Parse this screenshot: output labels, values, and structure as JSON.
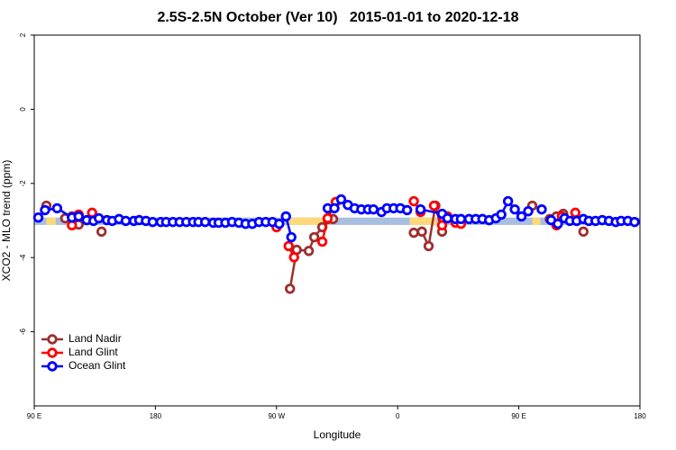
{
  "chart_data": {
    "type": "line",
    "title": "2.5S-2.5N October (Ver 10)   2015-01-01 to 2020-12-18",
    "x_label": "Longitude",
    "y_label": "XCO2 - MLO trend (ppm)",
    "xlim": [
      90,
      540
    ],
    "ylim": [
      -8,
      2
    ],
    "xticks": [
      {
        "value": 90,
        "label": "90 E"
      },
      180,
      {
        "value": 270,
        "label": "90 W"
      },
      {
        "value": 360,
        "label": "0"
      },
      {
        "value": 450,
        "label": "90 E"
      },
      {
        "value": 540,
        "label": "180"
      }
    ],
    "yticks": [
      2,
      0,
      -2,
      -4,
      -6
    ],
    "legend": "bottom-left",
    "band": {
      "ylim": [
        -3.12,
        -2.92
      ],
      "color": "#a8bfdf",
      "highlights": {
        "color": "#fcd97a",
        "xranges": [
          [
            99,
            106
          ],
          [
            279,
            309
          ],
          [
            369,
            389
          ],
          [
            460,
            466
          ]
        ]
      }
    },
    "series": [
      {
        "name": "Land Nadir",
        "color": "#9e2f2f",
        "x": [
          99,
          null,
          113,
          118,
          123,
          null,
          140,
          null,
          280,
          285,
          294,
          298,
          304,
          308,
          312,
          null,
          372,
          378,
          383,
          388,
          393,
          null,
          460,
          null,
          473,
          478,
          483,
          null,
          498
        ],
        "values": [
          -2.6,
          null,
          -2.94,
          -2.89,
          -3.11,
          null,
          -3.3,
          null,
          -4.84,
          -3.79,
          -3.82,
          -3.45,
          -3.18,
          -2.96,
          -2.96,
          null,
          -3.33,
          -3.3,
          -3.69,
          -2.6,
          -3.3,
          null,
          -2.6,
          null,
          -2.96,
          -2.89,
          -2.82,
          null,
          -3.3
        ]
      },
      {
        "name": "Land Glint",
        "color": "#ff0000",
        "x": [
          118,
          123,
          null,
          133,
          null,
          270,
          null,
          279,
          283,
          null,
          304,
          308,
          314,
          null,
          372,
          377,
          null,
          387,
          393,
          397,
          403,
          407,
          null,
          478,
          482,
          null,
          492
        ],
        "values": [
          -3.13,
          -2.84,
          null,
          -2.79,
          null,
          -3.18,
          null,
          -3.69,
          -3.99,
          null,
          -3.57,
          -2.94,
          -2.5,
          null,
          -2.48,
          -2.77,
          null,
          -2.6,
          -3.13,
          -2.89,
          -3.06,
          -3.09,
          null,
          -3.13,
          -2.89,
          null,
          -2.79
        ]
      },
      {
        "name": "Ocean Glint",
        "color": "#0000ff",
        "x": [
          93,
          98,
          107,
          118,
          123,
          129,
          134,
          138,
          144,
          148,
          153,
          158,
          164,
          168,
          173,
          178,
          184,
          188,
          193,
          198,
          203,
          208,
          212,
          217,
          223,
          227,
          232,
          237,
          242,
          247,
          252,
          257,
          262,
          267,
          272,
          277,
          281,
          null,
          308,
          313,
          318,
          323,
          328,
          333,
          338,
          342,
          348,
          352,
          357,
          362,
          367,
          null,
          377,
          393,
          397,
          403,
          407,
          413,
          418,
          423,
          428,
          433,
          437,
          442,
          447,
          452,
          457,
          null,
          467,
          null,
          474,
          479,
          484,
          488,
          493,
          498,
          502,
          507,
          512,
          517,
          522,
          526,
          531,
          536
        ],
        "values": [
          -2.92,
          -2.72,
          -2.67,
          -2.92,
          -2.89,
          -2.99,
          -3.01,
          -2.94,
          -2.99,
          -3.01,
          -2.96,
          -3.01,
          -3.01,
          -2.99,
          -3.01,
          -3.04,
          -3.04,
          -3.04,
          -3.04,
          -3.04,
          -3.04,
          -3.04,
          -3.04,
          -3.04,
          -3.06,
          -3.06,
          -3.06,
          -3.04,
          -3.06,
          -3.09,
          -3.09,
          -3.04,
          -3.04,
          -3.04,
          -3.09,
          -2.89,
          -3.45,
          null,
          -2.67,
          -2.67,
          -2.43,
          -2.58,
          -2.67,
          -2.7,
          -2.7,
          -2.7,
          -2.77,
          -2.67,
          -2.67,
          -2.67,
          -2.72,
          null,
          -2.7,
          -2.82,
          -2.94,
          -2.96,
          -2.96,
          -2.96,
          -2.96,
          -2.96,
          -2.99,
          -2.94,
          -2.84,
          -2.48,
          -2.7,
          -2.89,
          -2.75,
          null,
          -2.7,
          null,
          -2.99,
          -3.09,
          -2.94,
          -3.01,
          -3.01,
          -2.96,
          -3.01,
          -3.01,
          -2.99,
          -3.01,
          -3.04,
          -3.01,
          -3.01,
          -3.04
        ]
      }
    ]
  }
}
